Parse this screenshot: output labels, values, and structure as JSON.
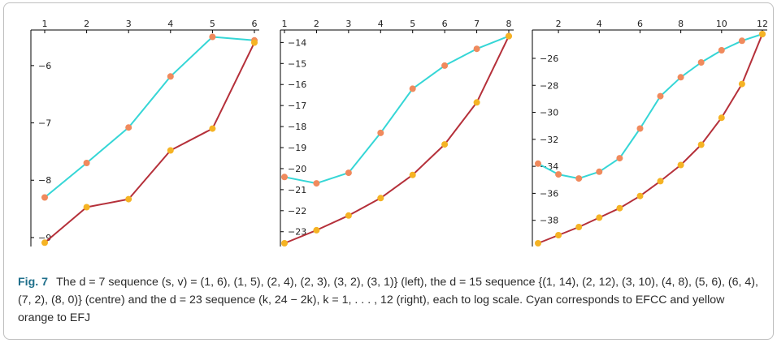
{
  "caption": {
    "label": "Fig. 7",
    "text": "The d = 7 sequence (s, v) = (1, 6), (1, 5), (2, 4), (2, 3), (3, 2), (3, 1)} (left), the d = 15 sequence {(1, 14), (2, 12), (3, 10), (4, 8), (5, 6), (6, 4), (7, 2), (8, 0)} (centre) and the d = 23 sequence (k, 24 − 2k), k = 1, . . . , 12 (right), each to log scale. Cyan corresponds to EFCC and yellow orange to EFJ"
  },
  "colors": {
    "efcc_line": "#35d6d6",
    "efj_line": "#b5303a",
    "efcc_marker": "#f08a5d",
    "efj_marker": "#f5b324",
    "axis": "#000000"
  },
  "chart_data": [
    {
      "type": "line",
      "position": "left",
      "x": [
        1,
        2,
        3,
        4,
        5,
        6
      ],
      "xlim": [
        1,
        6
      ],
      "ylim": [
        -9.1,
        -5.45
      ],
      "x_ticks": [
        1,
        2,
        3,
        4,
        5,
        6
      ],
      "y_ticks": [
        -6,
        -7,
        -8,
        -9
      ],
      "x_axis_position": "top",
      "grid": false,
      "series": [
        {
          "key": "efcc",
          "values": [
            -8.3,
            -7.7,
            -7.08,
            -6.19,
            -5.5,
            -5.56
          ]
        },
        {
          "key": "efj",
          "values": [
            -9.09,
            -8.47,
            -8.33,
            -7.48,
            -7.1,
            -5.6
          ]
        }
      ]
    },
    {
      "type": "line",
      "position": "centre",
      "x": [
        1,
        2,
        3,
        4,
        5,
        6,
        7,
        8
      ],
      "xlim": [
        1,
        8
      ],
      "ylim": [
        -23.55,
        -13.6
      ],
      "x_ticks": [
        1,
        2,
        3,
        4,
        5,
        6,
        7,
        8
      ],
      "y_ticks": [
        -14,
        -15,
        -16,
        -17,
        -18,
        -19,
        -20,
        -21,
        -22,
        -23
      ],
      "x_axis_position": "top",
      "grid": false,
      "series": [
        {
          "key": "efcc",
          "values": [
            -20.4,
            -20.7,
            -20.2,
            -18.3,
            -16.2,
            -15.1,
            -14.3,
            -13.7
          ]
        },
        {
          "key": "efj",
          "values": [
            -23.55,
            -22.93,
            -22.23,
            -21.4,
            -20.3,
            -18.85,
            -16.85,
            -13.7
          ]
        }
      ]
    },
    {
      "type": "line",
      "position": "right",
      "x": [
        1,
        2,
        3,
        4,
        5,
        6,
        7,
        8,
        9,
        10,
        11,
        12
      ],
      "xlim": [
        1,
        12
      ],
      "ylim": [
        -39.7,
        -24.2
      ],
      "x_ticks": [
        2,
        4,
        6,
        8,
        10,
        12
      ],
      "y_ticks": [
        -26,
        -28,
        -30,
        -32,
        -34,
        -36,
        -38
      ],
      "x_axis_position": "top",
      "grid": false,
      "series": [
        {
          "key": "efcc",
          "values": [
            -33.8,
            -34.6,
            -34.9,
            -34.4,
            -33.4,
            -31.2,
            -28.8,
            -27.4,
            -26.3,
            -25.4,
            -24.7,
            -24.2
          ]
        },
        {
          "key": "efj",
          "values": [
            -39.7,
            -39.1,
            -38.5,
            -37.8,
            -37.1,
            -36.2,
            -35.1,
            -33.9,
            -32.4,
            -30.4,
            -27.9,
            -24.2
          ]
        }
      ]
    }
  ]
}
